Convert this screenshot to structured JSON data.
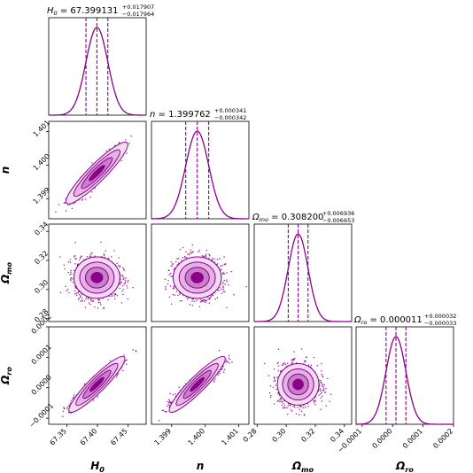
{
  "chart_data": {
    "type": "corner",
    "color": "#8b008b",
    "fill_color": "#e8b8e8",
    "parameters": [
      {
        "id": "H0",
        "label": "H",
        "label_sub": "0",
        "title_sym": "H",
        "title_sub": "0",
        "value": "67.399131",
        "err_plus": "+0.017907",
        "err_minus": "−0.017964",
        "median": 67.399131,
        "sigma": 0.01794,
        "range": [
          67.32,
          67.48
        ],
        "ticks": [
          67.35,
          67.4,
          67.45
        ],
        "tick_labels": [
          "67.35",
          "67.40",
          "67.45"
        ]
      },
      {
        "id": "n",
        "label": "n",
        "label_sub": "",
        "title_sym": "n",
        "title_sub": "",
        "value": "1.399762",
        "err_plus": "+0.000341",
        "err_minus": "−0.000342",
        "median": 1.399762,
        "sigma": 0.000342,
        "range": [
          1.3984,
          1.4013
        ],
        "ticks": [
          1.399,
          1.4,
          1.401
        ],
        "tick_labels": [
          "1.399",
          "1.400",
          "1.401"
        ]
      },
      {
        "id": "Omo",
        "label": "Ω",
        "label_sub": "mo",
        "title_sym": "Ω",
        "title_sub": "mo",
        "value": "0.308200",
        "err_plus": "+0.006936",
        "err_minus": "−0.006653",
        "median": 0.3082,
        "sigma": 0.0068,
        "range": [
          0.278,
          0.345
        ],
        "ticks": [
          0.28,
          0.3,
          0.32,
          0.34
        ],
        "tick_labels": [
          "0.28",
          "0.30",
          "0.32",
          "0.34"
        ]
      },
      {
        "id": "Oro",
        "label": "Ω",
        "label_sub": "ro",
        "title_sym": "Ω",
        "title_sub": "ro",
        "value": "0.000011",
        "err_plus": "+0.000032",
        "err_minus": "−0.000033",
        "median": 1.1e-05,
        "sigma": 3.25e-05,
        "range": [
          -0.00012,
          0.0002
        ],
        "ticks": [
          -0.0001,
          0.0,
          0.0001,
          0.0002
        ],
        "tick_labels": [
          "−0.0001",
          "0.0000",
          "0.0001",
          "0.0002"
        ]
      }
    ],
    "correlations": [
      {
        "pair": [
          "H0",
          "n"
        ],
        "rho": 0.92
      },
      {
        "pair": [
          "H0",
          "Omo"
        ],
        "rho": 0.0
      },
      {
        "pair": [
          "H0",
          "Oro"
        ],
        "rho": 0.92
      },
      {
        "pair": [
          "n",
          "Omo"
        ],
        "rho": 0.0
      },
      {
        "pair": [
          "n",
          "Oro"
        ],
        "rho": 0.92
      },
      {
        "pair": [
          "Omo",
          "Oro"
        ],
        "rho": 0.0
      }
    ],
    "contour_levels_sigma": [
      0.5,
      1.0,
      1.5,
      2.0
    ],
    "quantile_lines": "16th, 50th, 84th percentiles (dashed)",
    "grid": false
  }
}
